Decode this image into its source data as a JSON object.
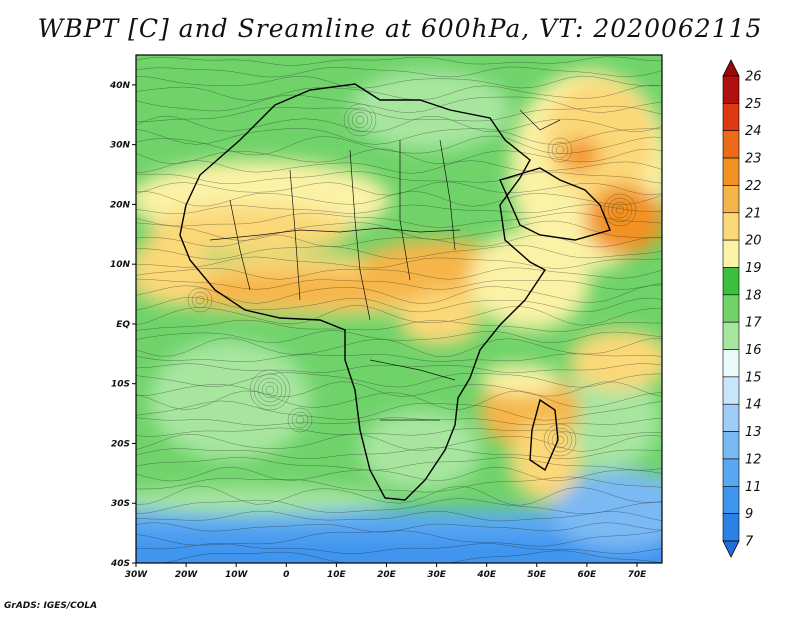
{
  "title": "WBPT [C] and Sreamline at 600hPa, VT: 2020062115",
  "footer": "GrADS: IGES/COLA",
  "map": {
    "lon_range": [
      -30,
      75
    ],
    "lat_range": [
      -40,
      45
    ],
    "lon_ticks": [
      {
        "value": -30,
        "label": "30W"
      },
      {
        "value": -20,
        "label": "20W"
      },
      {
        "value": -10,
        "label": "10W"
      },
      {
        "value": 0,
        "label": "0"
      },
      {
        "value": 10,
        "label": "10E"
      },
      {
        "value": 20,
        "label": "20E"
      },
      {
        "value": 30,
        "label": "30E"
      },
      {
        "value": 40,
        "label": "40E"
      },
      {
        "value": 50,
        "label": "50E"
      },
      {
        "value": 60,
        "label": "60E"
      },
      {
        "value": 70,
        "label": "70E"
      }
    ],
    "lat_ticks": [
      {
        "value": 40,
        "label": "40N"
      },
      {
        "value": 30,
        "label": "30N"
      },
      {
        "value": 20,
        "label": "20N"
      },
      {
        "value": 10,
        "label": "10N"
      },
      {
        "value": 0,
        "label": "EQ"
      },
      {
        "value": -10,
        "label": "10S"
      },
      {
        "value": -20,
        "label": "20S"
      },
      {
        "value": -30,
        "label": "30S"
      },
      {
        "value": -40,
        "label": "40S"
      }
    ]
  },
  "colorbar": {
    "levels": [
      "7",
      "9",
      "11",
      "12",
      "13",
      "14",
      "15",
      "16",
      "17",
      "18",
      "19",
      "20",
      "21",
      "22",
      "23",
      "24",
      "25",
      "26"
    ],
    "colors": [
      "#1e6fd9",
      "#2b82e6",
      "#3f95ee",
      "#5aa8f2",
      "#7ab9f4",
      "#9fcdf6",
      "#c8e6fa",
      "#edfafa",
      "#a8e6a0",
      "#6fd36a",
      "#3cbf3c",
      "#fbf2a6",
      "#fbd878",
      "#f6b548",
      "#f29224",
      "#ec6a18",
      "#dc3812",
      "#b01010",
      "#9b0808"
    ]
  }
}
